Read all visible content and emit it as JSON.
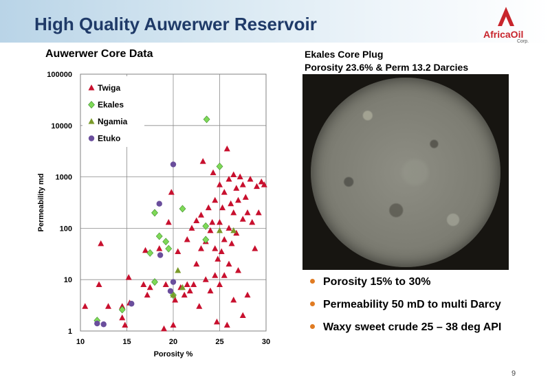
{
  "slide": {
    "title": "High Quality Auwerwer Reservoir",
    "page_number": "9"
  },
  "logo": {
    "name": "AfricaOil",
    "sub": "Corp.",
    "brand_color": "#c8252c"
  },
  "plug": {
    "caption_line1": "Ekales Core Plug",
    "caption_line2": "Porosity 23.6% & Perm 13.2 Darcies"
  },
  "bullets": [
    "Porosity 15% to 30%",
    "Permeability 50 mD to multi Darcy",
    "Waxy sweet crude 25 – 38 deg API"
  ],
  "colors": {
    "title": "#1f3a68",
    "bullet": "#e07b22",
    "twiga": "#c8102e",
    "ekales": "#7ed957",
    "ngamia": "#7a9a2a",
    "etuko": "#6a4e9c"
  },
  "chart_data": {
    "type": "scatter",
    "title": "Auwerwer Core Data",
    "xlabel": "Porosity %",
    "ylabel": "Permeability md",
    "xlim": [
      10,
      30
    ],
    "ylim": [
      1,
      100000
    ],
    "yscale": "log",
    "x_ticks": [
      "10",
      "15",
      "20",
      "25",
      "30"
    ],
    "y_ticks": [
      "1",
      "10",
      "100",
      "1000",
      "10000",
      "100000"
    ],
    "grid": true,
    "legend_position": "top-left",
    "series": [
      {
        "name": "Twiga",
        "marker": "triangle",
        "color": "#c8102e",
        "points": [
          [
            10.5,
            3
          ],
          [
            12,
            8
          ],
          [
            12.2,
            50
          ],
          [
            13,
            3
          ],
          [
            14.5,
            1.8
          ],
          [
            14.5,
            3
          ],
          [
            14.8,
            1.3
          ],
          [
            15.2,
            11
          ],
          [
            15.3,
            3.5
          ],
          [
            16.8,
            8
          ],
          [
            17,
            37
          ],
          [
            17.2,
            5
          ],
          [
            17.5,
            7
          ],
          [
            18.5,
            40
          ],
          [
            19,
            1.1
          ],
          [
            19.2,
            8
          ],
          [
            19.5,
            130
          ],
          [
            19.8,
            500
          ],
          [
            20,
            1.3
          ],
          [
            20.2,
            4
          ],
          [
            20.5,
            35
          ],
          [
            20.8,
            7
          ],
          [
            21.2,
            5
          ],
          [
            21.5,
            8
          ],
          [
            21.5,
            60
          ],
          [
            21.8,
            6
          ],
          [
            22,
            100
          ],
          [
            22.2,
            8
          ],
          [
            22.5,
            20
          ],
          [
            22.5,
            140
          ],
          [
            22.8,
            3
          ],
          [
            23,
            40
          ],
          [
            23,
            180
          ],
          [
            23.2,
            2000
          ],
          [
            23.5,
            10
          ],
          [
            23.5,
            55
          ],
          [
            23.8,
            250
          ],
          [
            24,
            6
          ],
          [
            24,
            90
          ],
          [
            24.2,
            130
          ],
          [
            24.3,
            1200
          ],
          [
            24.5,
            12
          ],
          [
            24.5,
            40
          ],
          [
            24.5,
            350
          ],
          [
            24.7,
            1.5
          ],
          [
            24.8,
            25
          ],
          [
            25,
            8
          ],
          [
            25,
            130
          ],
          [
            25,
            700
          ],
          [
            25.2,
            35
          ],
          [
            25.3,
            250
          ],
          [
            25.5,
            12
          ],
          [
            25.5,
            60
          ],
          [
            25.5,
            500
          ],
          [
            25.8,
            1.3
          ],
          [
            25.8,
            3500
          ],
          [
            26,
            20
          ],
          [
            26,
            100
          ],
          [
            26,
            900
          ],
          [
            26.2,
            300
          ],
          [
            26.3,
            50
          ],
          [
            26.5,
            4
          ],
          [
            26.5,
            200
          ],
          [
            26.5,
            1100
          ],
          [
            26.8,
            80
          ],
          [
            26.8,
            600
          ],
          [
            27,
            15
          ],
          [
            27,
            350
          ],
          [
            27.2,
            1000
          ],
          [
            27.5,
            2
          ],
          [
            27.5,
            150
          ],
          [
            27.5,
            700
          ],
          [
            27.8,
            400
          ],
          [
            28,
            5
          ],
          [
            28,
            200
          ],
          [
            28.3,
            900
          ],
          [
            28.5,
            130
          ],
          [
            28.8,
            40
          ],
          [
            29,
            650
          ],
          [
            29.2,
            200
          ],
          [
            29.5,
            800
          ],
          [
            29.8,
            700
          ]
        ]
      },
      {
        "name": "Ekales",
        "marker": "diamond",
        "color": "#7ed957",
        "points": [
          [
            11.8,
            1.6
          ],
          [
            14.5,
            2.6
          ],
          [
            17.5,
            33
          ],
          [
            18,
            9
          ],
          [
            18,
            200
          ],
          [
            18.5,
            70
          ],
          [
            19.2,
            55
          ],
          [
            19.5,
            40
          ],
          [
            20,
            5
          ],
          [
            21,
            240
          ],
          [
            23.5,
            110
          ],
          [
            23.5,
            60
          ],
          [
            23.6,
            13200
          ],
          [
            25,
            1600
          ]
        ]
      },
      {
        "name": "Ngamia",
        "marker": "triangle",
        "color": "#7a9a2a",
        "points": [
          [
            20,
            5
          ],
          [
            20.5,
            15
          ],
          [
            21,
            7
          ],
          [
            25,
            90
          ],
          [
            26.5,
            90
          ]
        ]
      },
      {
        "name": "Etuko",
        "marker": "circle",
        "color": "#6a4e9c",
        "points": [
          [
            11.8,
            1.4
          ],
          [
            12.5,
            1.35
          ],
          [
            15.5,
            3.4
          ],
          [
            18.5,
            300
          ],
          [
            18.6,
            30
          ],
          [
            19.7,
            6
          ],
          [
            20,
            9
          ],
          [
            20,
            1750
          ]
        ]
      }
    ]
  }
}
